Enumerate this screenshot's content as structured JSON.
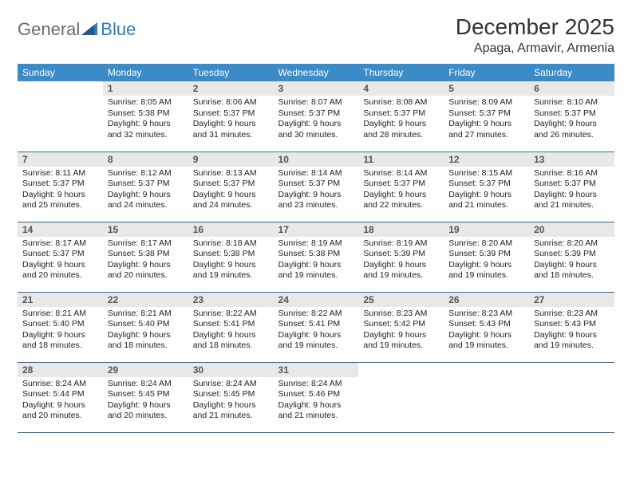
{
  "logo": {
    "part1": "General",
    "part2": "Blue"
  },
  "title": "December 2025",
  "location": "Apaga, Armavir, Armenia",
  "dayHeaders": [
    "Sunday",
    "Monday",
    "Tuesday",
    "Wednesday",
    "Thursday",
    "Friday",
    "Saturday"
  ],
  "colors": {
    "headerBg": "#3b8bc8",
    "headerText": "#ffffff",
    "dayNumBg": "#e8e8e8",
    "rowBorder": "#2b6aa3",
    "logoGray": "#6b6b6b",
    "logoBlue": "#2b7bbf"
  },
  "weeks": [
    [
      null,
      {
        "n": "1",
        "sunrise": "8:05 AM",
        "sunset": "5:38 PM",
        "daylight": "9 hours and 32 minutes."
      },
      {
        "n": "2",
        "sunrise": "8:06 AM",
        "sunset": "5:37 PM",
        "daylight": "9 hours and 31 minutes."
      },
      {
        "n": "3",
        "sunrise": "8:07 AM",
        "sunset": "5:37 PM",
        "daylight": "9 hours and 30 minutes."
      },
      {
        "n": "4",
        "sunrise": "8:08 AM",
        "sunset": "5:37 PM",
        "daylight": "9 hours and 28 minutes."
      },
      {
        "n": "5",
        "sunrise": "8:09 AM",
        "sunset": "5:37 PM",
        "daylight": "9 hours and 27 minutes."
      },
      {
        "n": "6",
        "sunrise": "8:10 AM",
        "sunset": "5:37 PM",
        "daylight": "9 hours and 26 minutes."
      }
    ],
    [
      {
        "n": "7",
        "sunrise": "8:11 AM",
        "sunset": "5:37 PM",
        "daylight": "9 hours and 25 minutes."
      },
      {
        "n": "8",
        "sunrise": "8:12 AM",
        "sunset": "5:37 PM",
        "daylight": "9 hours and 24 minutes."
      },
      {
        "n": "9",
        "sunrise": "8:13 AM",
        "sunset": "5:37 PM",
        "daylight": "9 hours and 24 minutes."
      },
      {
        "n": "10",
        "sunrise": "8:14 AM",
        "sunset": "5:37 PM",
        "daylight": "9 hours and 23 minutes."
      },
      {
        "n": "11",
        "sunrise": "8:14 AM",
        "sunset": "5:37 PM",
        "daylight": "9 hours and 22 minutes."
      },
      {
        "n": "12",
        "sunrise": "8:15 AM",
        "sunset": "5:37 PM",
        "daylight": "9 hours and 21 minutes."
      },
      {
        "n": "13",
        "sunrise": "8:16 AM",
        "sunset": "5:37 PM",
        "daylight": "9 hours and 21 minutes."
      }
    ],
    [
      {
        "n": "14",
        "sunrise": "8:17 AM",
        "sunset": "5:37 PM",
        "daylight": "9 hours and 20 minutes."
      },
      {
        "n": "15",
        "sunrise": "8:17 AM",
        "sunset": "5:38 PM",
        "daylight": "9 hours and 20 minutes."
      },
      {
        "n": "16",
        "sunrise": "8:18 AM",
        "sunset": "5:38 PM",
        "daylight": "9 hours and 19 minutes."
      },
      {
        "n": "17",
        "sunrise": "8:19 AM",
        "sunset": "5:38 PM",
        "daylight": "9 hours and 19 minutes."
      },
      {
        "n": "18",
        "sunrise": "8:19 AM",
        "sunset": "5:39 PM",
        "daylight": "9 hours and 19 minutes."
      },
      {
        "n": "19",
        "sunrise": "8:20 AM",
        "sunset": "5:39 PM",
        "daylight": "9 hours and 19 minutes."
      },
      {
        "n": "20",
        "sunrise": "8:20 AM",
        "sunset": "5:39 PM",
        "daylight": "9 hours and 18 minutes."
      }
    ],
    [
      {
        "n": "21",
        "sunrise": "8:21 AM",
        "sunset": "5:40 PM",
        "daylight": "9 hours and 18 minutes."
      },
      {
        "n": "22",
        "sunrise": "8:21 AM",
        "sunset": "5:40 PM",
        "daylight": "9 hours and 18 minutes."
      },
      {
        "n": "23",
        "sunrise": "8:22 AM",
        "sunset": "5:41 PM",
        "daylight": "9 hours and 18 minutes."
      },
      {
        "n": "24",
        "sunrise": "8:22 AM",
        "sunset": "5:41 PM",
        "daylight": "9 hours and 19 minutes."
      },
      {
        "n": "25",
        "sunrise": "8:23 AM",
        "sunset": "5:42 PM",
        "daylight": "9 hours and 19 minutes."
      },
      {
        "n": "26",
        "sunrise": "8:23 AM",
        "sunset": "5:43 PM",
        "daylight": "9 hours and 19 minutes."
      },
      {
        "n": "27",
        "sunrise": "8:23 AM",
        "sunset": "5:43 PM",
        "daylight": "9 hours and 19 minutes."
      }
    ],
    [
      {
        "n": "28",
        "sunrise": "8:24 AM",
        "sunset": "5:44 PM",
        "daylight": "9 hours and 20 minutes."
      },
      {
        "n": "29",
        "sunrise": "8:24 AM",
        "sunset": "5:45 PM",
        "daylight": "9 hours and 20 minutes."
      },
      {
        "n": "30",
        "sunrise": "8:24 AM",
        "sunset": "5:45 PM",
        "daylight": "9 hours and 21 minutes."
      },
      {
        "n": "31",
        "sunrise": "8:24 AM",
        "sunset": "5:46 PM",
        "daylight": "9 hours and 21 minutes."
      },
      null,
      null,
      null
    ]
  ],
  "labels": {
    "sunrise": "Sunrise: ",
    "sunset": "Sunset: ",
    "daylight": "Daylight: "
  }
}
